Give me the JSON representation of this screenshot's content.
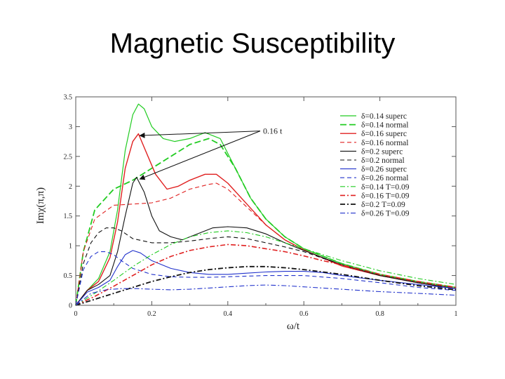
{
  "title": "Magnetic Susceptibility",
  "chart_data": {
    "type": "line",
    "xlabel": "ω/t",
    "ylabel": "Imχ(π,π)",
    "xlim": [
      0,
      1
    ],
    "ylim": [
      0,
      3.5
    ],
    "xticks": [
      0,
      0.2,
      0.4,
      0.6,
      0.8,
      1
    ],
    "xtick_labels": [
      "0",
      "0.2",
      "0.4",
      "0.6",
      "0.8",
      "1"
    ],
    "yticks": [
      0,
      0.5,
      1,
      1.5,
      2,
      2.5,
      3,
      3.5
    ],
    "ytick_labels": [
      "0",
      "0.5",
      "1",
      "1.5",
      "2",
      "2.5",
      "3",
      "3.5"
    ],
    "grid": false,
    "legend_position": "top-right",
    "annotation": {
      "text": "0.16 t",
      "targets": [
        [
          0.165,
          2.85
        ],
        [
          0.165,
          2.12
        ]
      ],
      "label_at": [
        0.5,
        2.88
      ]
    },
    "series": [
      {
        "name": "δ=0.14 superc",
        "color": "#22cc22",
        "dash": "solid",
        "width": 1.2,
        "x": [
          0,
          0.03,
          0.06,
          0.09,
          0.11,
          0.13,
          0.15,
          0.165,
          0.18,
          0.2,
          0.23,
          0.26,
          0.3,
          0.34,
          0.38,
          0.42,
          0.46,
          0.5,
          0.55,
          0.6,
          0.7,
          0.8,
          0.9,
          1.0
        ],
        "y": [
          0,
          0.25,
          0.45,
          0.9,
          1.6,
          2.6,
          3.2,
          3.38,
          3.3,
          3.0,
          2.8,
          2.75,
          2.8,
          2.9,
          2.8,
          2.3,
          1.8,
          1.45,
          1.15,
          0.95,
          0.7,
          0.52,
          0.4,
          0.3
        ]
      },
      {
        "name": "δ=0.14 normal",
        "color": "#22cc22",
        "dash": "long-dash",
        "width": 1.8,
        "x": [
          0,
          0.02,
          0.05,
          0.1,
          0.15,
          0.2,
          0.25,
          0.3,
          0.35,
          0.38,
          0.42,
          0.46,
          0.5,
          0.55,
          0.6,
          0.7,
          0.8,
          0.9,
          1.0
        ],
        "y": [
          0,
          0.9,
          1.6,
          1.95,
          2.1,
          2.3,
          2.5,
          2.7,
          2.8,
          2.7,
          2.3,
          1.8,
          1.45,
          1.15,
          0.95,
          0.7,
          0.52,
          0.4,
          0.3
        ]
      },
      {
        "name": "δ=0.16 superc",
        "color": "#e02020",
        "dash": "solid",
        "width": 1.4,
        "x": [
          0,
          0.03,
          0.06,
          0.09,
          0.11,
          0.13,
          0.15,
          0.165,
          0.18,
          0.21,
          0.24,
          0.27,
          0.3,
          0.34,
          0.37,
          0.4,
          0.45,
          0.5,
          0.55,
          0.6,
          0.7,
          0.8,
          0.9,
          1.0
        ],
        "y": [
          0,
          0.25,
          0.4,
          0.8,
          1.4,
          2.3,
          2.75,
          2.88,
          2.65,
          2.2,
          1.95,
          2.0,
          2.1,
          2.2,
          2.2,
          2.05,
          1.7,
          1.35,
          1.1,
          0.93,
          0.66,
          0.5,
          0.38,
          0.28
        ]
      },
      {
        "name": "δ=0.16 normal",
        "color": "#e02020",
        "dash": "dash",
        "width": 1.1,
        "x": [
          0,
          0.02,
          0.05,
          0.1,
          0.15,
          0.2,
          0.25,
          0.3,
          0.35,
          0.37,
          0.4,
          0.45,
          0.5,
          0.55,
          0.6,
          0.7,
          0.8,
          0.9,
          1.0
        ],
        "y": [
          0,
          0.9,
          1.45,
          1.68,
          1.7,
          1.72,
          1.8,
          1.95,
          2.03,
          2.05,
          1.95,
          1.65,
          1.35,
          1.1,
          0.93,
          0.66,
          0.5,
          0.38,
          0.28
        ]
      },
      {
        "name": "δ=0.2 superc",
        "color": "#111111",
        "dash": "solid",
        "width": 1.1,
        "x": [
          0,
          0.03,
          0.06,
          0.09,
          0.11,
          0.13,
          0.15,
          0.16,
          0.18,
          0.2,
          0.22,
          0.25,
          0.28,
          0.32,
          0.36,
          0.4,
          0.45,
          0.5,
          0.55,
          0.6,
          0.7,
          0.8,
          0.9,
          1.0
        ],
        "y": [
          0,
          0.25,
          0.35,
          0.5,
          0.9,
          1.5,
          2.05,
          2.15,
          1.9,
          1.5,
          1.25,
          1.15,
          1.1,
          1.2,
          1.3,
          1.32,
          1.3,
          1.2,
          1.05,
          0.92,
          0.68,
          0.5,
          0.38,
          0.28
        ]
      },
      {
        "name": "δ=0.2 normal",
        "color": "#111111",
        "dash": "dash",
        "width": 1.1,
        "x": [
          0,
          0.02,
          0.04,
          0.06,
          0.08,
          0.1,
          0.12,
          0.15,
          0.2,
          0.25,
          0.3,
          0.35,
          0.4,
          0.45,
          0.5,
          0.55,
          0.6,
          0.7,
          0.8,
          0.9,
          1.0
        ],
        "y": [
          0,
          0.7,
          1.05,
          1.22,
          1.3,
          1.3,
          1.25,
          1.12,
          1.05,
          1.05,
          1.08,
          1.12,
          1.15,
          1.12,
          1.05,
          0.98,
          0.9,
          0.68,
          0.5,
          0.38,
          0.28
        ]
      },
      {
        "name": "δ=0.26 superc",
        "color": "#2233cc",
        "dash": "solid",
        "width": 1.1,
        "x": [
          0,
          0.03,
          0.06,
          0.09,
          0.11,
          0.13,
          0.15,
          0.17,
          0.2,
          0.25,
          0.3,
          0.35,
          0.4,
          0.45,
          0.5,
          0.55,
          0.6,
          0.65,
          0.7,
          0.8,
          0.9,
          1.0
        ],
        "y": [
          0,
          0.22,
          0.3,
          0.42,
          0.65,
          0.85,
          0.92,
          0.88,
          0.75,
          0.62,
          0.55,
          0.52,
          0.52,
          0.54,
          0.56,
          0.57,
          0.57,
          0.55,
          0.5,
          0.42,
          0.35,
          0.28
        ]
      },
      {
        "name": "δ=0.26 normal",
        "color": "#2233cc",
        "dash": "dash",
        "width": 1.1,
        "x": [
          0,
          0.02,
          0.04,
          0.06,
          0.08,
          0.1,
          0.12,
          0.15,
          0.2,
          0.25,
          0.3,
          0.35,
          0.4,
          0.5,
          0.6,
          0.7,
          0.8,
          0.9,
          1.0
        ],
        "y": [
          0,
          0.6,
          0.82,
          0.9,
          0.9,
          0.85,
          0.75,
          0.62,
          0.52,
          0.48,
          0.47,
          0.47,
          0.48,
          0.5,
          0.5,
          0.45,
          0.38,
          0.3,
          0.25
        ]
      },
      {
        "name": "δ=0.14 T=0.09",
        "color": "#22cc22",
        "dash": "dash-dot",
        "width": 1.1,
        "x": [
          0,
          0.05,
          0.1,
          0.15,
          0.2,
          0.25,
          0.3,
          0.35,
          0.4,
          0.45,
          0.5,
          0.55,
          0.6,
          0.65,
          0.7,
          0.8,
          0.9,
          1.0
        ],
        "y": [
          0,
          0.2,
          0.42,
          0.65,
          0.85,
          1.02,
          1.15,
          1.22,
          1.25,
          1.22,
          1.15,
          1.05,
          0.95,
          0.85,
          0.75,
          0.58,
          0.45,
          0.35
        ]
      },
      {
        "name": "δ=0.16 T=0.09",
        "color": "#e02020",
        "dash": "dash-dot",
        "width": 1.6,
        "x": [
          0,
          0.05,
          0.1,
          0.15,
          0.2,
          0.25,
          0.3,
          0.35,
          0.4,
          0.45,
          0.5,
          0.55,
          0.6,
          0.65,
          0.7,
          0.8,
          0.9,
          1.0
        ],
        "y": [
          0,
          0.15,
          0.32,
          0.5,
          0.68,
          0.82,
          0.92,
          0.98,
          1.02,
          1.0,
          0.95,
          0.9,
          0.83,
          0.75,
          0.68,
          0.52,
          0.4,
          0.3
        ]
      },
      {
        "name": "δ=0.2 T=0.09",
        "color": "#111111",
        "dash": "dash-dot",
        "width": 1.8,
        "x": [
          0,
          0.05,
          0.1,
          0.15,
          0.2,
          0.25,
          0.3,
          0.35,
          0.4,
          0.45,
          0.5,
          0.55,
          0.6,
          0.65,
          0.7,
          0.8,
          0.9,
          1.0
        ],
        "y": [
          0,
          0.1,
          0.2,
          0.3,
          0.4,
          0.48,
          0.55,
          0.6,
          0.63,
          0.65,
          0.65,
          0.63,
          0.6,
          0.56,
          0.52,
          0.42,
          0.33,
          0.26
        ]
      },
      {
        "name": "δ=0.26 T=0.09",
        "color": "#2233cc",
        "dash": "dash-dot",
        "width": 1.1,
        "x": [
          0,
          0.04,
          0.08,
          0.12,
          0.16,
          0.2,
          0.25,
          0.3,
          0.35,
          0.4,
          0.45,
          0.5,
          0.55,
          0.6,
          0.7,
          0.8,
          0.9,
          1.0
        ],
        "y": [
          0,
          0.2,
          0.26,
          0.28,
          0.28,
          0.27,
          0.26,
          0.27,
          0.29,
          0.31,
          0.33,
          0.34,
          0.33,
          0.31,
          0.27,
          0.23,
          0.2,
          0.17
        ]
      }
    ]
  }
}
